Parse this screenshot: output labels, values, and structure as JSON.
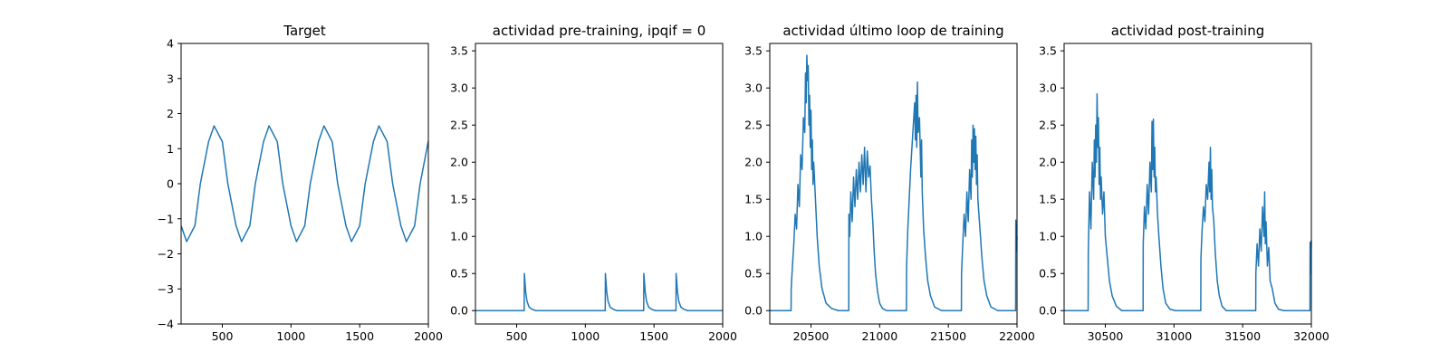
{
  "chart_data": [
    {
      "type": "line",
      "title": "Target",
      "xlabel": "",
      "ylabel": "",
      "xlim": [
        200,
        2000
      ],
      "ylim": [
        -4,
        4
      ],
      "xticks": [
        500,
        1000,
        1500,
        2000
      ],
      "yticks": [
        -4,
        -3,
        -2,
        -1,
        0,
        1,
        2,
        3,
        4
      ],
      "xtick_labels": [
        "500",
        "1000",
        "1500",
        "2000"
      ],
      "ytick_labels": [
        "−4",
        "−3",
        "−2",
        "−1",
        "0",
        "1",
        "2",
        "3",
        "4"
      ],
      "grid": false,
      "series": [
        {
          "x": [
            200,
            240,
            300,
            340,
            400,
            440,
            500,
            540,
            600,
            640,
            700,
            740,
            800,
            840,
            900,
            940,
            1000,
            1040,
            1100,
            1140,
            1200,
            1240,
            1300,
            1340,
            1400,
            1440,
            1500,
            1540,
            1600,
            1640,
            1700,
            1740,
            1800,
            1840,
            1900,
            1940,
            2000
          ],
          "values": [
            -1.2,
            -1.65,
            -1.2,
            0.0,
            1.2,
            1.65,
            1.2,
            0.0,
            -1.2,
            -1.65,
            -1.2,
            0.0,
            1.2,
            1.65,
            1.2,
            0.0,
            -1.2,
            -1.65,
            -1.2,
            0.0,
            1.2,
            1.65,
            1.2,
            0.0,
            -1.2,
            -1.65,
            -1.2,
            0.0,
            1.2,
            1.65,
            1.2,
            0.0,
            -1.2,
            -1.65,
            -1.2,
            0.0,
            1.22
          ]
        }
      ]
    },
    {
      "type": "line",
      "title": "actividad pre-training, ipqif = 0",
      "xlabel": "",
      "ylabel": "",
      "xlim": [
        200,
        2000
      ],
      "ylim": [
        -0.18,
        3.6
      ],
      "xticks": [
        500,
        1000,
        1500,
        2000
      ],
      "yticks": [
        0.0,
        0.5,
        1.0,
        1.5,
        2.0,
        2.5,
        3.0,
        3.5
      ],
      "xtick_labels": [
        "500",
        "1000",
        "1500",
        "2000"
      ],
      "ytick_labels": [
        "0.0",
        "0.5",
        "1.0",
        "1.5",
        "2.0",
        "2.5",
        "3.0",
        "3.5"
      ],
      "grid": false,
      "series": [
        {
          "x": [
            200,
            555,
            556,
            560,
            566,
            575,
            590,
            610,
            640,
            1145,
            1146,
            1150,
            1156,
            1165,
            1180,
            1200,
            1230,
            1425,
            1426,
            1430,
            1436,
            1445,
            1460,
            1480,
            1510,
            1660,
            1661,
            1665,
            1671,
            1680,
            1695,
            1715,
            1745,
            2000
          ],
          "values": [
            0,
            0,
            0.5,
            0.4,
            0.25,
            0.13,
            0.05,
            0.02,
            0,
            0,
            0.5,
            0.4,
            0.25,
            0.13,
            0.05,
            0.02,
            0,
            0,
            0.5,
            0.4,
            0.25,
            0.13,
            0.05,
            0.02,
            0,
            0,
            0.5,
            0.4,
            0.25,
            0.13,
            0.05,
            0.02,
            0,
            0
          ]
        }
      ]
    },
    {
      "type": "line",
      "title": "actividad último loop de training",
      "xlabel": "",
      "ylabel": "",
      "xlim": [
        20200,
        22000
      ],
      "ylim": [
        -0.18,
        3.6
      ],
      "xticks": [
        20500,
        21000,
        21500,
        22000
      ],
      "yticks": [
        0.0,
        0.5,
        1.0,
        1.5,
        2.0,
        2.5,
        3.0,
        3.5
      ],
      "xtick_labels": [
        "20500",
        "21000",
        "21500",
        "22000"
      ],
      "ytick_labels": [
        "0.0",
        "0.5",
        "1.0",
        "1.5",
        "2.0",
        "2.5",
        "3.0",
        "3.5"
      ],
      "grid": false,
      "series": [
        {
          "x": [
            20200,
            20355,
            20356,
            20365,
            20375,
            20385,
            20395,
            20405,
            20415,
            20425,
            20435,
            20445,
            20455,
            20460,
            20465,
            20470,
            20475,
            20480,
            20485,
            20490,
            20495,
            20500,
            20505,
            20510,
            20515,
            20520,
            20530,
            20545,
            20560,
            20580,
            20610,
            20650,
            20700,
            20775,
            20776,
            20782,
            20790,
            20800,
            20810,
            20820,
            20830,
            20840,
            20850,
            20860,
            20870,
            20880,
            20890,
            20900,
            20910,
            20920,
            20930,
            20940,
            20950,
            20960,
            20970,
            20985,
            21000,
            21020,
            21050,
            21100,
            21195,
            21196,
            21205,
            21215,
            21225,
            21235,
            21245,
            21255,
            21260,
            21265,
            21270,
            21275,
            21280,
            21290,
            21300,
            21305,
            21310,
            21320,
            21335,
            21350,
            21370,
            21400,
            21450,
            21500,
            21595,
            21596,
            21605,
            21615,
            21625,
            21635,
            21645,
            21655,
            21665,
            21670,
            21675,
            21680,
            21685,
            21690,
            21695,
            21700,
            21705,
            21710,
            21715,
            21730,
            21745,
            21760,
            21780,
            21810,
            21860,
            21990,
            21991,
            21995,
            22000
          ],
          "values": [
            0,
            0,
            0.3,
            0.6,
            0.9,
            1.3,
            1.1,
            1.7,
            1.4,
            2.1,
            1.9,
            2.6,
            2.4,
            3.2,
            2.8,
            3.44,
            3.1,
            3.3,
            2.5,
            2.9,
            2.2,
            2.7,
            1.9,
            2.3,
            1.7,
            2.0,
            1.6,
            1.0,
            0.6,
            0.3,
            0.1,
            0.03,
            0,
            0,
            1.3,
            1.0,
            1.6,
            1.2,
            1.8,
            1.4,
            1.9,
            1.5,
            2.0,
            1.6,
            2.1,
            1.7,
            2.2,
            1.6,
            2.15,
            1.8,
            1.95,
            1.5,
            1.2,
            0.8,
            0.5,
            0.25,
            0.1,
            0.03,
            0,
            0,
            0,
            0.6,
            1.1,
            1.5,
            1.9,
            2.2,
            2.5,
            2.8,
            2.3,
            2.9,
            2.2,
            3.08,
            2.4,
            2.6,
            1.8,
            2.3,
            1.6,
            1.1,
            0.7,
            0.4,
            0.2,
            0.05,
            0,
            0,
            0,
            0.5,
            0.9,
            1.3,
            1.0,
            1.6,
            1.2,
            1.9,
            1.5,
            2.3,
            1.8,
            2.5,
            2.0,
            2.45,
            1.9,
            2.35,
            1.7,
            2.1,
            1.5,
            1.1,
            0.7,
            0.4,
            0.2,
            0.05,
            0,
            0,
            1.22,
            0.8,
            1.0
          ]
        }
      ]
    },
    {
      "type": "line",
      "title": "actividad post-training",
      "xlabel": "",
      "ylabel": "",
      "xlim": [
        30200,
        32000
      ],
      "ylim": [
        -0.18,
        3.6
      ],
      "xticks": [
        30500,
        31000,
        31500,
        32000
      ],
      "yticks": [
        0.0,
        0.5,
        1.0,
        1.5,
        2.0,
        2.5,
        3.0,
        3.5
      ],
      "xtick_labels": [
        "30500",
        "31000",
        "31500",
        "32000"
      ],
      "ytick_labels": [
        "0.0",
        "0.5",
        "1.0",
        "1.5",
        "2.0",
        "2.5",
        "3.0",
        "3.5"
      ],
      "grid": false,
      "series": [
        {
          "x": [
            30200,
            30375,
            30376,
            30385,
            30395,
            30405,
            30415,
            30420,
            30425,
            30430,
            30435,
            30440,
            30445,
            30450,
            30455,
            30460,
            30465,
            30470,
            30480,
            30490,
            30500,
            30515,
            30530,
            30550,
            30580,
            30620,
            30700,
            30775,
            30776,
            30785,
            30795,
            30805,
            30815,
            30825,
            30835,
            30840,
            30845,
            30850,
            30855,
            30860,
            30865,
            30870,
            30880,
            30890,
            30905,
            30920,
            30940,
            30970,
            31010,
            31100,
            31195,
            31196,
            31205,
            31215,
            31225,
            31235,
            31245,
            31255,
            31260,
            31265,
            31270,
            31275,
            31280,
            31290,
            31300,
            31315,
            31330,
            31350,
            31380,
            31420,
            31500,
            31595,
            31596,
            31605,
            31615,
            31625,
            31635,
            31645,
            31655,
            31660,
            31665,
            31670,
            31680,
            31690,
            31700,
            31715,
            31735,
            31760,
            31800,
            31990,
            31991,
            31995,
            32000
          ],
          "values": [
            0,
            0,
            0.8,
            1.6,
            1.1,
            2.0,
            1.5,
            2.3,
            1.8,
            2.5,
            2.0,
            2.92,
            2.2,
            2.6,
            1.7,
            2.2,
            1.5,
            1.8,
            1.3,
            1.6,
            1.0,
            0.7,
            0.4,
            0.2,
            0.06,
            0,
            0,
            0,
            0.9,
            1.4,
            1.1,
            1.7,
            1.3,
            2.0,
            1.6,
            2.55,
            1.9,
            2.58,
            1.8,
            2.2,
            1.6,
            1.8,
            1.3,
            1.0,
            0.6,
            0.3,
            0.1,
            0.02,
            0,
            0,
            0,
            0.7,
            1.1,
            1.4,
            1.2,
            1.7,
            1.5,
            2.0,
            1.6,
            2.2,
            1.5,
            1.9,
            1.4,
            1.2,
            0.8,
            0.4,
            0.2,
            0.06,
            0,
            0,
            0,
            0,
            0.5,
            0.9,
            0.6,
            1.1,
            0.8,
            1.4,
            1.0,
            1.6,
            0.9,
            1.2,
            0.6,
            0.85,
            0.4,
            0.3,
            0.1,
            0.02,
            0,
            0,
            0.92,
            0.5,
            0.95
          ]
        }
      ]
    }
  ]
}
